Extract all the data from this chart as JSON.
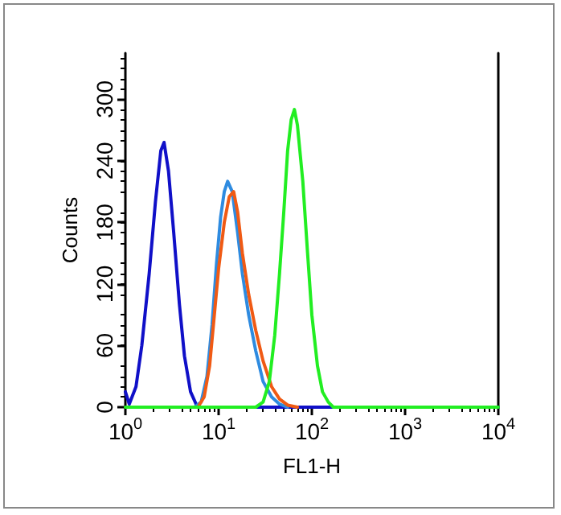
{
  "chart_data": {
    "type": "line",
    "xlabel": "FL1-H",
    "ylabel": "Counts",
    "log": "x",
    "marker": "none",
    "line_style": "solid",
    "xlim": [
      1,
      10000
    ],
    "xticks": [
      {
        "value": 1,
        "label": "10$^{0}$"
      },
      {
        "value": 10,
        "label": "10$^{1}$"
      },
      {
        "value": 100,
        "label": "10$^{2}$"
      },
      {
        "value": 1000,
        "label": "10$^{3}$"
      },
      {
        "value": 10000,
        "label": "10$^{4}$"
      }
    ],
    "ylim": [
      0,
      345
    ],
    "yticks": [
      0,
      60,
      120,
      180,
      240,
      300
    ],
    "series": [
      {
        "color": "#1010c8",
        "x": [
          1,
          1.1,
          1.3,
          1.5,
          1.8,
          2.1,
          2.4,
          2.6,
          2.9,
          3.3,
          3.8,
          4.3,
          5,
          5.8,
          6.2,
          10000
        ],
        "values": [
          15,
          3,
          20,
          60,
          130,
          200,
          250,
          258,
          230,
          170,
          100,
          50,
          15,
          2,
          0,
          0
        ]
      },
      {
        "color": "#2e8be0",
        "x": [
          5.5,
          6.5,
          7.5,
          8.5,
          9.5,
          10.5,
          11.5,
          12.5,
          14,
          16,
          18,
          21,
          25,
          30,
          37,
          45,
          55
        ],
        "values": [
          0,
          5,
          30,
          80,
          140,
          185,
          210,
          220,
          210,
          170,
          130,
          90,
          55,
          25,
          10,
          3,
          0
        ]
      },
      {
        "color": "#f05a14",
        "x": [
          6,
          7,
          8,
          9,
          10,
          11.5,
          13,
          14.5,
          16,
          18,
          21,
          25,
          30,
          37,
          45,
          55,
          70
        ],
        "values": [
          0,
          10,
          40,
          90,
          135,
          180,
          205,
          210,
          190,
          150,
          110,
          75,
          45,
          20,
          8,
          2,
          0
        ]
      },
      {
        "color": "#22ee22",
        "x": [
          1,
          25,
          30,
          35,
          40,
          45,
          50,
          55,
          60,
          65,
          70,
          80,
          90,
          100,
          115,
          130,
          150,
          170,
          10000
        ],
        "values": [
          0,
          0,
          5,
          25,
          70,
          130,
          190,
          250,
          280,
          290,
          275,
          220,
          150,
          90,
          40,
          15,
          5,
          0,
          0
        ]
      }
    ]
  }
}
